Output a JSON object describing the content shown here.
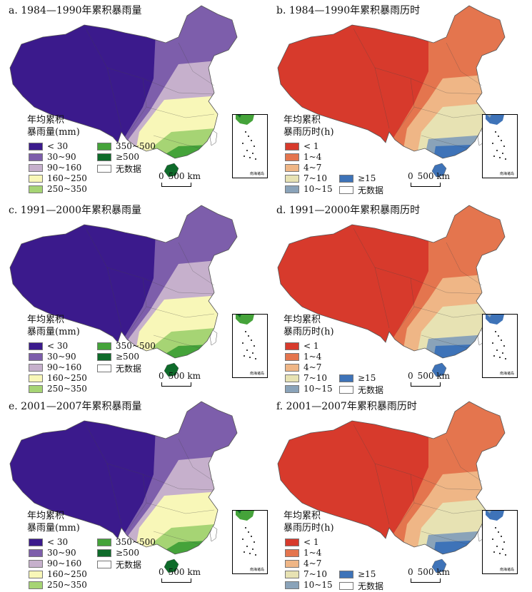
{
  "panels": [
    {
      "title": "a. 1984—1990年累积暴雨量",
      "type": "amount",
      "colors": [
        "#3b1a8c",
        "#7d5eab",
        "#c6b0cc",
        "#f8f7b8",
        "#a6d474",
        "#45a33a",
        "#0e6b2a"
      ]
    },
    {
      "title": "b. 1984—1990年累积暴雨历时",
      "type": "duration",
      "colors": [
        "#d73a2c",
        "#e4754e",
        "#efb686",
        "#e7e2b3",
        "#8aa3b9",
        "#3e73b8"
      ]
    },
    {
      "title": "c. 1991—2000年累积暴雨量",
      "type": "amount",
      "colors": [
        "#3b1a8c",
        "#7d5eab",
        "#c6b0cc",
        "#f8f7b8",
        "#a6d474",
        "#45a33a",
        "#0e6b2a"
      ]
    },
    {
      "title": "d. 1991—2000年累积暴雨历时",
      "type": "duration",
      "colors": [
        "#d73a2c",
        "#e4754e",
        "#efb686",
        "#e7e2b3",
        "#8aa3b9",
        "#3e73b8"
      ]
    },
    {
      "title": "e. 2001—2007年累积暴雨量",
      "type": "amount",
      "colors": [
        "#3b1a8c",
        "#7d5eab",
        "#c6b0cc",
        "#f8f7b8",
        "#a6d474",
        "#45a33a",
        "#0e6b2a"
      ]
    },
    {
      "title": "f. 2001—2007年累积暴雨历时",
      "type": "duration",
      "colors": [
        "#d73a2c",
        "#e4754e",
        "#efb686",
        "#e7e2b3",
        "#8aa3b9",
        "#3e73b8"
      ]
    }
  ],
  "legend_amount": {
    "title_line1": "年均累积",
    "title_line2": "暴雨量(mm)",
    "items": [
      {
        "label": "< 30",
        "color": "#3b1a8c"
      },
      {
        "label": "30~90",
        "color": "#7d5eab"
      },
      {
        "label": "90~160",
        "color": "#c6b0cc"
      },
      {
        "label": "160~250",
        "color": "#f8f7b8"
      },
      {
        "label": "250~350",
        "color": "#a6d474"
      },
      {
        "label": "350~500",
        "color": "#45a33a"
      },
      {
        "label": "≥500",
        "color": "#0e6b2a"
      },
      {
        "label": "无数据",
        "color": "#ffffff"
      }
    ]
  },
  "legend_duration": {
    "title_line1": "年均累积",
    "title_line2": "暴雨历时(h)",
    "items": [
      {
        "label": "< 1",
        "color": "#d73a2c"
      },
      {
        "label": "1~4",
        "color": "#e4754e"
      },
      {
        "label": "4~7",
        "color": "#efb686"
      },
      {
        "label": "7~10",
        "color": "#e7e2b3"
      },
      {
        "label": "10~15",
        "color": "#8aa3b9"
      },
      {
        "label": "≥15",
        "color": "#3e73b8"
      },
      {
        "label": "无数据",
        "color": "#ffffff"
      }
    ]
  },
  "scale": {
    "zero": "0",
    "dist": "500 km"
  },
  "inset_label": "南海诸岛"
}
